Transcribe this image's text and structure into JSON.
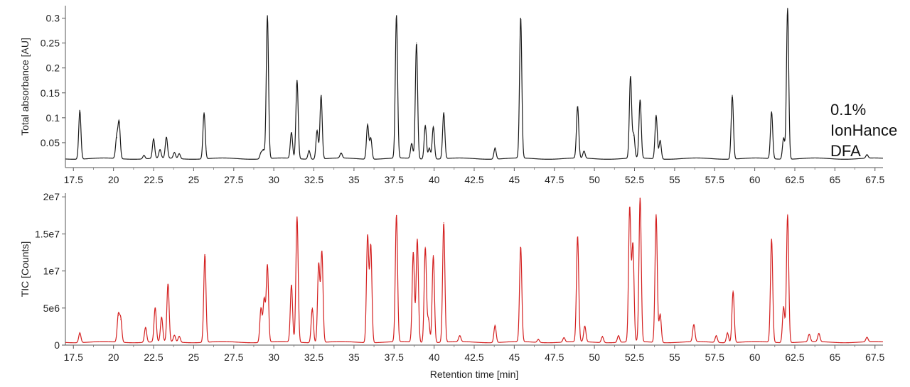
{
  "chart_data": [
    {
      "type": "line",
      "ylabel": "Total absorbance [AU]",
      "xlabel": "",
      "annotation": [
        "0.1%",
        "IonHance",
        "DFA"
      ],
      "xlim": [
        17.0,
        68.0
      ],
      "ylim": [
        0.0,
        0.325
      ],
      "x_ticks": [
        17.5,
        20,
        22.5,
        25,
        27.5,
        30,
        32.5,
        35,
        37.5,
        40,
        42.5,
        45,
        47.5,
        50,
        52.5,
        55,
        57.5,
        60,
        62.5,
        65,
        67.5
      ],
      "x_tick_labels": [
        "17.5",
        "20",
        "22.5",
        "25",
        "27.5",
        "30",
        "32.5",
        "35",
        "37.5",
        "40",
        "42.5",
        "45",
        "47.5",
        "50",
        "52.5",
        "55",
        "57.5",
        "60",
        "62.5",
        "65",
        "67.5"
      ],
      "y_ticks": [
        0.05,
        0.1,
        0.15,
        0.2,
        0.25,
        0.3
      ],
      "y_tick_labels": [
        "0.05",
        "0.1",
        "0.15",
        "0.2",
        "0.25",
        "0.3"
      ],
      "color": "#1a1a1a",
      "baseline": 0.018,
      "peaks": [
        [
          17.9,
          0.115
        ],
        [
          20.2,
          0.06
        ],
        [
          20.35,
          0.09
        ],
        [
          21.9,
          0.025
        ],
        [
          22.5,
          0.057
        ],
        [
          22.9,
          0.035
        ],
        [
          23.3,
          0.06
        ],
        [
          23.8,
          0.03
        ],
        [
          24.1,
          0.028
        ],
        [
          25.65,
          0.11
        ],
        [
          29.2,
          0.03
        ],
        [
          29.35,
          0.035
        ],
        [
          29.6,
          0.305
        ],
        [
          31.1,
          0.07
        ],
        [
          31.45,
          0.175
        ],
        [
          32.2,
          0.035
        ],
        [
          32.7,
          0.075
        ],
        [
          32.95,
          0.145
        ],
        [
          34.2,
          0.028
        ],
        [
          35.85,
          0.087
        ],
        [
          36.05,
          0.06
        ],
        [
          37.65,
          0.305
        ],
        [
          38.6,
          0.048
        ],
        [
          38.9,
          0.25
        ],
        [
          39.45,
          0.085
        ],
        [
          39.7,
          0.04
        ],
        [
          39.95,
          0.083
        ],
        [
          40.6,
          0.11
        ],
        [
          43.8,
          0.04
        ],
        [
          45.4,
          0.3
        ],
        [
          48.95,
          0.122
        ],
        [
          49.35,
          0.032
        ],
        [
          52.25,
          0.182
        ],
        [
          52.45,
          0.065
        ],
        [
          52.85,
          0.135
        ],
        [
          53.85,
          0.105
        ],
        [
          54.1,
          0.055
        ],
        [
          58.6,
          0.145
        ],
        [
          61.05,
          0.112
        ],
        [
          61.8,
          0.06
        ],
        [
          62.05,
          0.32
        ],
        [
          67.0,
          0.025
        ]
      ]
    },
    {
      "type": "line",
      "ylabel": "TIC [Counts]",
      "xlabel": "Retention time [min]",
      "xlim": [
        17.0,
        68.0
      ],
      "ylim": [
        0,
        20500000
      ],
      "x_ticks": [
        17.5,
        20,
        22.5,
        25,
        27.5,
        30,
        32.5,
        35,
        37.5,
        40,
        42.5,
        45,
        47.5,
        50,
        52.5,
        55,
        57.5,
        60,
        62.5,
        65,
        67.5
      ],
      "x_tick_labels": [
        "17.5",
        "20",
        "22.5",
        "25",
        "27.5",
        "30",
        "32.5",
        "35",
        "37.5",
        "40",
        "42.5",
        "45",
        "47.5",
        "50",
        "52.5",
        "55",
        "57.5",
        "60",
        "62.5",
        "65",
        "67.5"
      ],
      "y_ticks": [
        0,
        5000000,
        10000000,
        15000000,
        20000000
      ],
      "y_tick_labels": [
        "0",
        "5e6",
        "1e7",
        "1.5e7",
        "2e7"
      ],
      "color": "#d42020",
      "baseline": 400000,
      "peaks": [
        [
          17.9,
          1700000
        ],
        [
          20.3,
          4000000
        ],
        [
          20.45,
          3500000
        ],
        [
          22.0,
          2400000
        ],
        [
          22.6,
          5000000
        ],
        [
          23.0,
          3700000
        ],
        [
          23.4,
          8200000
        ],
        [
          23.8,
          1300000
        ],
        [
          24.1,
          1200000
        ],
        [
          25.7,
          12200000
        ],
        [
          29.2,
          5000000
        ],
        [
          29.4,
          6200000
        ],
        [
          29.6,
          10800000
        ],
        [
          31.1,
          8100000
        ],
        [
          31.45,
          17300000
        ],
        [
          32.4,
          5000000
        ],
        [
          32.8,
          11000000
        ],
        [
          33.0,
          12600000
        ],
        [
          35.85,
          14800000
        ],
        [
          36.05,
          13500000
        ],
        [
          37.65,
          17500000
        ],
        [
          38.7,
          12500000
        ],
        [
          38.95,
          14300000
        ],
        [
          39.45,
          13200000
        ],
        [
          39.65,
          3500000
        ],
        [
          39.95,
          12100000
        ],
        [
          40.6,
          16500000
        ],
        [
          41.6,
          1200000
        ],
        [
          43.8,
          2700000
        ],
        [
          45.4,
          13200000
        ],
        [
          46.5,
          800000
        ],
        [
          48.1,
          1000000
        ],
        [
          48.95,
          14600000
        ],
        [
          49.4,
          2500000
        ],
        [
          50.5,
          1200000
        ],
        [
          51.5,
          1300000
        ],
        [
          52.2,
          18500000
        ],
        [
          52.4,
          13500000
        ],
        [
          52.85,
          19800000
        ],
        [
          53.85,
          17600000
        ],
        [
          54.1,
          4200000
        ],
        [
          56.2,
          2700000
        ],
        [
          57.6,
          1300000
        ],
        [
          58.3,
          1700000
        ],
        [
          58.65,
          7300000
        ],
        [
          61.05,
          14300000
        ],
        [
          61.8,
          5200000
        ],
        [
          62.05,
          17600000
        ],
        [
          63.4,
          1400000
        ],
        [
          64.0,
          1500000
        ],
        [
          67.0,
          1000000
        ]
      ]
    }
  ]
}
